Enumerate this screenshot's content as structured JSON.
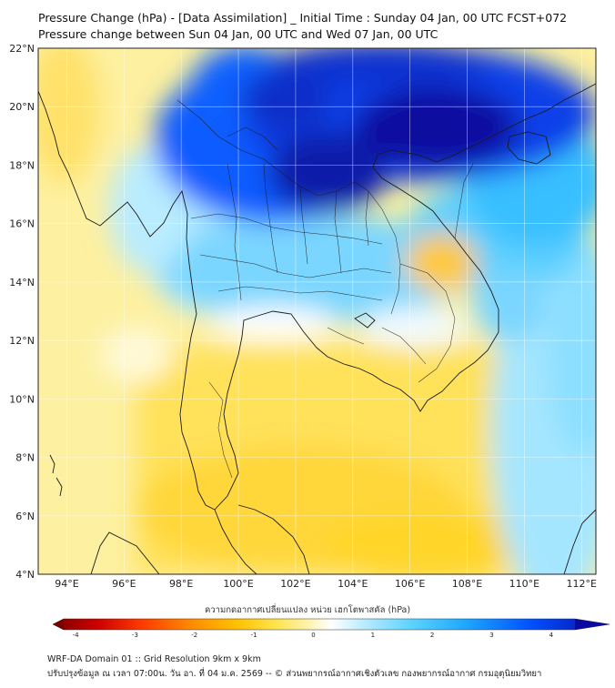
{
  "title": {
    "line1": "Pressure Change (hPa) - [Data Assimilation] _ Initial Time : Sunday 04 Jan, 00 UTC FCST+072",
    "line2": "Pressure change between Sun 04 Jan, 00 UTC and Wed 07 Jan, 00 UTC"
  },
  "map": {
    "lat_labels": [
      "22°N",
      "20°N",
      "18°N",
      "16°N",
      "14°N",
      "12°N",
      "10°N",
      "8°N",
      "6°N",
      "4°N"
    ],
    "lon_labels": [
      "94°E",
      "96°E",
      "98°E",
      "100°E",
      "102°E",
      "104°E",
      "106°E",
      "108°E",
      "110°E",
      "112°E"
    ],
    "lat_values": [
      22,
      20,
      18,
      16,
      14,
      12,
      10,
      8,
      6,
      4
    ],
    "lon_values": [
      94,
      96,
      98,
      100,
      102,
      104,
      106,
      108,
      110,
      112
    ],
    "lat_range": [
      4,
      22
    ],
    "lon_range": [
      93,
      112.5
    ],
    "grid": true
  },
  "colorbar": {
    "title": "ความกดอากาศเปลี่ยนแปลง หน่วย เฮกโตพาสคัล (hPa)",
    "ticks": [
      "-4",
      "-3",
      "-2",
      "-1",
      "0",
      "1",
      "2",
      "3",
      "4"
    ],
    "tick_values": [
      -4,
      -3,
      -2,
      -1,
      0,
      1,
      2,
      3,
      4
    ],
    "range": [
      -4.2,
      4.4
    ],
    "colors": [
      "#7a0000",
      "#cc0000",
      "#ff3a00",
      "#ff8c00",
      "#ffc000",
      "#ffe34d",
      "#fff2b0",
      "#ffffff",
      "#b8ecff",
      "#5fd4ff",
      "#1ea8ff",
      "#0050ff",
      "#0a0a9e"
    ]
  },
  "footer": {
    "line1": "WRF-DA Domain 01 :: Grid Resolution 9km x 9km",
    "line2": "ปรับปรุงข้อมูล ณ เวลา 07:00น. วัน อา. ที่ 04 ม.ค. 2569 -- © ส่วนพยากรณ์อากาศเชิงตัวเลข กองพยากรณ์อากาศ กรมอุตุนิยมวิทยา"
  }
}
